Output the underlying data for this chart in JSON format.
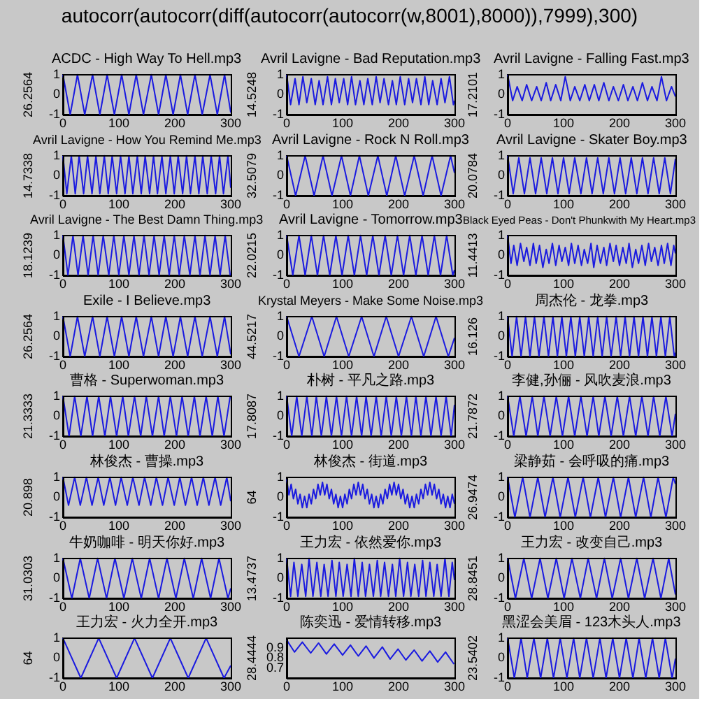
{
  "chart_data": [
    {
      "type": "line",
      "title": "ACDC - High Way To Hell.mp3",
      "ylabel": "26.2564",
      "annotations": [
        "autocorr(autocorr(diff(autocorr(autocorr(w,8001),8000)),7999),300)"
      ],
      "color": "#1a1ae0",
      "xlim": [
        0,
        300
      ],
      "ylim": [
        -1,
        1
      ],
      "xticks": [
        0,
        100,
        200,
        300
      ],
      "yticks": [
        -1,
        0,
        1
      ],
      "x": [
        0,
        13,
        26,
        39,
        53,
        66,
        79,
        92,
        105,
        118,
        131,
        144,
        158,
        171,
        184,
        197,
        210,
        223,
        236,
        249,
        263,
        276,
        289,
        300
      ],
      "values": [
        1,
        -1,
        1,
        -1,
        1,
        -1,
        1,
        -1,
        1,
        -1,
        1,
        -1,
        1,
        -1,
        1,
        -1,
        1,
        -1,
        1,
        -1,
        1,
        -1,
        1,
        -0.89
      ]
    },
    {
      "type": "line",
      "title": "Avril Lavigne - Bad Reputation.mp3",
      "ylabel": "14.5248",
      "color": "#1a1ae0",
      "xlim": [
        0,
        300
      ],
      "ylim": [
        -1,
        1
      ],
      "xticks": [
        0,
        100,
        200,
        300
      ],
      "yticks": [
        -1,
        0,
        1
      ],
      "x": [
        0,
        7,
        15,
        22,
        29,
        36,
        44,
        51,
        58,
        65,
        73,
        80,
        87,
        94,
        102,
        109,
        116,
        123,
        131,
        138,
        145,
        153,
        160,
        167,
        174,
        182,
        189,
        196,
        203,
        211,
        218,
        225,
        232,
        240,
        247,
        254,
        261,
        269,
        276,
        283,
        291,
        298,
        300
      ],
      "values": [
        1,
        -0.5,
        0.8,
        -0.5,
        0.9,
        -0.4,
        0.8,
        -0.5,
        0.7,
        -0.5,
        0.9,
        -0.5,
        0.8,
        -0.4,
        0.8,
        -0.5,
        0.9,
        -0.5,
        0.7,
        -0.5,
        0.8,
        -0.5,
        0.9,
        -0.4,
        0.8,
        -0.5,
        0.7,
        -0.5,
        0.9,
        -0.5,
        0.8,
        -0.4,
        0.8,
        -0.5,
        0.9,
        -0.5,
        0.7,
        -0.5,
        0.8,
        -0.4,
        0.9,
        -0.5,
        -0.3
      ]
    },
    {
      "type": "line",
      "title": "Avril Lavigne - Falling Fast.mp3",
      "ylabel": "17.2101",
      "color": "#1a1ae0",
      "xlim": [
        0,
        300
      ],
      "ylim": [
        -1,
        1
      ],
      "xticks": [
        0,
        100,
        200,
        300
      ],
      "yticks": [
        -1,
        0,
        1
      ],
      "x": [
        0,
        9,
        17,
        26,
        34,
        43,
        52,
        60,
        69,
        77,
        86,
        95,
        103,
        112,
        120,
        129,
        138,
        146,
        155,
        163,
        172,
        181,
        189,
        198,
        207,
        215,
        224,
        232,
        241,
        250,
        258,
        267,
        275,
        284,
        293,
        300
      ],
      "values": [
        1,
        -0.3,
        0.4,
        -0.3,
        0.5,
        -0.3,
        0.4,
        -0.3,
        0.6,
        -0.3,
        0.5,
        -0.3,
        0.9,
        -0.3,
        0.4,
        -0.3,
        0.5,
        -0.3,
        0.5,
        -0.3,
        0.6,
        -0.3,
        0.4,
        -0.3,
        0.5,
        -0.3,
        0.4,
        -0.3,
        0.6,
        -0.3,
        0.4,
        -0.3,
        0.9,
        -0.3,
        0.4,
        -0.1
      ]
    },
    {
      "type": "line",
      "title": "Avril Lavigne - How You Remind Me.mp3",
      "ylabel": "14.7338",
      "color": "#1a1ae0",
      "xlim": [
        0,
        300
      ],
      "ylim": [
        -1,
        1
      ],
      "xticks": [
        0,
        100,
        200,
        300
      ],
      "yticks": [
        -1,
        0,
        1
      ],
      "x": [
        0,
        7,
        15,
        22,
        29,
        37,
        44,
        52,
        59,
        66,
        74,
        81,
        88,
        96,
        103,
        111,
        118,
        125,
        133,
        140,
        147,
        155,
        162,
        169,
        177,
        184,
        192,
        199,
        206,
        214,
        221,
        228,
        236,
        243,
        250,
        258,
        265,
        273,
        280,
        287,
        295,
        300
      ],
      "values": [
        1,
        -0.9,
        1,
        -0.9,
        1,
        -0.9,
        1,
        -0.9,
        1,
        -0.9,
        1,
        -0.9,
        1,
        -0.9,
        1,
        -0.9,
        1,
        -0.9,
        1,
        -0.9,
        1,
        -0.9,
        1,
        -0.9,
        1,
        -0.9,
        1,
        -0.9,
        1,
        -0.9,
        1,
        -0.9,
        1,
        -0.9,
        1,
        -0.9,
        1,
        -0.9,
        1,
        -0.9,
        1,
        -0.6
      ]
    },
    {
      "type": "line",
      "title": "Avril Lavigne - Rock N Roll.mp3",
      "ylabel": "32.5079",
      "color": "#1a1ae0",
      "xlim": [
        0,
        300
      ],
      "ylim": [
        -1,
        1
      ],
      "xticks": [
        0,
        100,
        200,
        300
      ],
      "yticks": [
        -1,
        0,
        1
      ],
      "x": [
        0,
        16,
        33,
        49,
        65,
        81,
        98,
        114,
        130,
        146,
        163,
        179,
        195,
        211,
        228,
        244,
        260,
        276,
        293,
        300
      ],
      "values": [
        1,
        -1,
        1,
        -1,
        1,
        -1,
        1,
        -1,
        1,
        -1,
        1,
        -1,
        1,
        -1,
        1,
        -1,
        1,
        -1,
        1,
        0.14
      ]
    },
    {
      "type": "line",
      "title": "Avril Lavigne - Skater Boy.mp3",
      "ylabel": "20.0784",
      "color": "#1a1ae0",
      "xlim": [
        0,
        300
      ],
      "ylim": [
        -1,
        1
      ],
      "xticks": [
        0,
        100,
        200,
        300
      ],
      "yticks": [
        -1,
        0,
        1
      ],
      "x": [
        0,
        10,
        20,
        30,
        40,
        50,
        60,
        70,
        80,
        90,
        100,
        110,
        120,
        131,
        141,
        151,
        161,
        171,
        181,
        191,
        201,
        211,
        221,
        231,
        241,
        251,
        261,
        271,
        281,
        291,
        300
      ],
      "values": [
        1,
        -0.9,
        0.9,
        -0.9,
        0.9,
        -0.9,
        0.9,
        -0.9,
        0.9,
        -0.9,
        0.9,
        -0.9,
        0.9,
        -0.9,
        0.9,
        -0.9,
        0.9,
        -0.9,
        0.9,
        -0.9,
        0.9,
        -0.9,
        0.9,
        -0.9,
        0.9,
        -0.9,
        0.9,
        -0.9,
        0.9,
        -0.9,
        0.85
      ]
    },
    {
      "type": "line",
      "title": "Avril Lavigne - The Best Damn Thing.mp3",
      "ylabel": "18.1239",
      "color": "#1a1ae0",
      "xlim": [
        0,
        300
      ],
      "ylim": [
        -1,
        1
      ],
      "xticks": [
        0,
        100,
        200,
        300
      ],
      "yticks": [
        -1,
        0,
        1
      ],
      "x": [
        0,
        9,
        18,
        27,
        36,
        45,
        54,
        63,
        72,
        82,
        91,
        100,
        109,
        118,
        127,
        136,
        145,
        154,
        163,
        172,
        181,
        190,
        199,
        208,
        217,
        227,
        236,
        245,
        254,
        263,
        272,
        281,
        290,
        299
      ],
      "values": [
        1,
        -1,
        1,
        -1,
        1,
        -1,
        1,
        -1,
        1,
        -1,
        1,
        -1,
        1,
        -1,
        1,
        -1,
        1,
        -1,
        1,
        -1,
        1,
        -1,
        1,
        -1,
        1,
        -1,
        1,
        -1,
        1,
        -1,
        1,
        -1,
        1,
        -1
      ]
    },
    {
      "type": "line",
      "title": "Avril Lavigne - Tomorrow.mp3",
      "ylabel": "22.0215",
      "color": "#1a1ae0",
      "xlim": [
        0,
        300
      ],
      "ylim": [
        -1,
        1
      ],
      "xticks": [
        0,
        100,
        200,
        300
      ],
      "yticks": [
        -1,
        0,
        1
      ],
      "x": [
        0,
        11,
        22,
        33,
        44,
        55,
        66,
        77,
        88,
        99,
        110,
        121,
        132,
        143,
        154,
        165,
        176,
        187,
        198,
        209,
        220,
        231,
        242,
        253,
        264,
        275,
        286,
        297,
        300
      ],
      "values": [
        1,
        -1,
        1,
        -1,
        1,
        -1,
        1,
        -1,
        1,
        -1,
        1,
        -1,
        1,
        -1,
        1,
        -1,
        1,
        -1,
        1,
        -1,
        1,
        -1,
        1,
        -1,
        1,
        -1,
        1,
        -1,
        -0.72
      ]
    },
    {
      "type": "line",
      "title": "Black Eyed Peas - Don't Phunkwith My Heart.mp3",
      "ylabel": "11.4413",
      "color": "#1a1ae0",
      "xlim": [
        0,
        300
      ],
      "ylim": [
        -1,
        1
      ],
      "xticks": [
        0,
        100,
        200,
        300
      ],
      "yticks": [
        -1,
        0,
        1
      ],
      "x": [
        0,
        6,
        11,
        17,
        23,
        29,
        34,
        40,
        46,
        51,
        57,
        63,
        69,
        74,
        80,
        86,
        92,
        97,
        103,
        109,
        114,
        120,
        126,
        132,
        137,
        143,
        149,
        154,
        160,
        166,
        172,
        177,
        183,
        189,
        194,
        200,
        206,
        212,
        217,
        223,
        229,
        234,
        240,
        246,
        252,
        257,
        263,
        269,
        275,
        280,
        286,
        292,
        297,
        300
      ],
      "values": [
        1,
        -0.4,
        0.5,
        -0.5,
        0.6,
        -0.3,
        0.4,
        -0.5,
        0.6,
        -0.4,
        0.5,
        -0.6,
        0.3,
        -0.4,
        0.6,
        -0.5,
        0.5,
        -0.3,
        0.4,
        -0.5,
        0.6,
        -0.4,
        0.5,
        -0.5,
        0.3,
        -0.4,
        0.6,
        -0.6,
        0.5,
        -0.4,
        0.4,
        -0.5,
        0.6,
        -0.3,
        0.5,
        -0.5,
        0.4,
        -0.4,
        0.6,
        -0.6,
        0.3,
        -0.4,
        0.5,
        -0.5,
        0.6,
        -0.3,
        0.4,
        -0.5,
        0.5,
        -0.4,
        0.6,
        -0.5,
        0.5,
        0.1
      ]
    },
    {
      "type": "line",
      "title": "Exile - I Believe.mp3",
      "ylabel": "26.2564",
      "color": "#1a1ae0",
      "xlim": [
        0,
        300
      ],
      "ylim": [
        -1,
        1
      ],
      "xticks": [
        0,
        100,
        200,
        300
      ],
      "yticks": [
        -1,
        0,
        1
      ],
      "x": [
        0,
        13,
        26,
        39,
        53,
        66,
        79,
        92,
        105,
        118,
        131,
        144,
        158,
        171,
        184,
        197,
        210,
        223,
        236,
        249,
        263,
        276,
        289,
        300
      ],
      "values": [
        1,
        -1,
        1,
        -1,
        1,
        -1,
        1,
        -1,
        1,
        -1,
        1,
        -1,
        1,
        -1,
        1,
        -1,
        1,
        -1,
        1,
        -1,
        1,
        -1,
        1,
        -0.89
      ]
    },
    {
      "type": "line",
      "title": "Krystal Meyers - Make Some Noise.mp3",
      "ylabel": "44.5217",
      "color": "#1a1ae0",
      "xlim": [
        0,
        300
      ],
      "ylim": [
        -1,
        1
      ],
      "xticks": [
        0,
        100,
        200,
        300
      ],
      "yticks": [
        -1,
        0,
        1
      ],
      "x": [
        0,
        22,
        45,
        67,
        89,
        111,
        134,
        156,
        178,
        200,
        223,
        245,
        267,
        289,
        300
      ],
      "values": [
        1,
        -1,
        1,
        -1,
        1,
        -1,
        1,
        -1,
        1,
        -1,
        1,
        -1,
        1,
        -1,
        -0.07
      ]
    },
    {
      "type": "line",
      "title": "周杰伦 - 龙拳.mp3",
      "ylabel": "16.126",
      "color": "#1a1ae0",
      "xlim": [
        0,
        300
      ],
      "ylim": [
        -1,
        1
      ],
      "xticks": [
        0,
        100,
        200,
        300
      ],
      "yticks": [
        -1,
        0,
        1
      ],
      "x": [
        0,
        8,
        16,
        24,
        32,
        40,
        48,
        56,
        65,
        73,
        81,
        89,
        97,
        105,
        113,
        121,
        129,
        137,
        145,
        153,
        161,
        169,
        177,
        185,
        194,
        202,
        210,
        218,
        226,
        234,
        242,
        250,
        258,
        266,
        274,
        282,
        290,
        298,
        300
      ],
      "values": [
        1,
        -1,
        1,
        -1,
        1,
        -1,
        1,
        -1,
        1,
        -1,
        1,
        -1,
        1,
        -1,
        1,
        -1,
        1,
        -1,
        1,
        -1,
        1,
        -1,
        1,
        -1,
        1,
        -1,
        1,
        -1,
        1,
        -1,
        1,
        -1,
        1,
        -1,
        1,
        -1,
        1,
        -1,
        -0.81
      ]
    },
    {
      "type": "line",
      "title": "曹格 - Superwoman.mp3",
      "ylabel": "21.3333",
      "color": "#1a1ae0",
      "xlim": [
        0,
        300
      ],
      "ylim": [
        -1,
        1
      ],
      "xticks": [
        0,
        100,
        200,
        300
      ],
      "yticks": [
        -1,
        0,
        1
      ],
      "x": [
        0,
        11,
        21,
        32,
        43,
        53,
        64,
        75,
        85,
        96,
        107,
        117,
        128,
        139,
        149,
        160,
        171,
        181,
        192,
        203,
        213,
        224,
        235,
        245,
        256,
        267,
        277,
        288,
        299
      ],
      "values": [
        1,
        -1,
        1,
        -1,
        1,
        -1,
        1,
        -1,
        1,
        -1,
        1,
        -1,
        1,
        -1,
        1,
        -1,
        1,
        -1,
        1,
        -1,
        1,
        -1,
        1,
        -1,
        1,
        -1,
        1,
        -1,
        1
      ]
    },
    {
      "type": "line",
      "title": "朴树 - 平凡之路.mp3",
      "ylabel": "17.8087",
      "color": "#1a1ae0",
      "xlim": [
        0,
        300
      ],
      "ylim": [
        -1,
        1
      ],
      "xticks": [
        0,
        100,
        200,
        300
      ],
      "yticks": [
        -1,
        0,
        1
      ],
      "x": [
        0,
        9,
        18,
        27,
        36,
        45,
        53,
        62,
        71,
        80,
        89,
        98,
        107,
        116,
        125,
        134,
        142,
        151,
        160,
        169,
        178,
        187,
        196,
        205,
        214,
        223,
        231,
        240,
        249,
        258,
        267,
        276,
        285,
        294,
        300
      ],
      "values": [
        1,
        -1,
        1,
        -1,
        1,
        -1,
        1,
        -1,
        1,
        -1,
        1,
        -1,
        1,
        -1,
        1,
        -1,
        1,
        -1,
        1,
        -1,
        1,
        -1,
        1,
        -1,
        1,
        -1,
        1,
        -1,
        1,
        -1,
        1,
        -1,
        1,
        -1,
        0.57
      ]
    },
    {
      "type": "line",
      "title": "李健,孙俪 - 风吹麦浪.mp3",
      "ylabel": "21.7872",
      "color": "#1a1ae0",
      "xlim": [
        0,
        300
      ],
      "ylim": [
        -1,
        1
      ],
      "xticks": [
        0,
        100,
        200,
        300
      ],
      "yticks": [
        -1,
        0,
        1
      ],
      "x": [
        0,
        11,
        22,
        33,
        44,
        54,
        65,
        76,
        87,
        98,
        109,
        120,
        131,
        142,
        153,
        163,
        174,
        185,
        196,
        207,
        218,
        229,
        240,
        251,
        261,
        272,
        283,
        294,
        300
      ],
      "values": [
        1,
        -1,
        1,
        -1,
        1,
        -1,
        1,
        -1,
        1,
        -1,
        1,
        -1,
        1,
        -1,
        1,
        -1,
        1,
        -1,
        1,
        -1,
        1,
        -1,
        1,
        -1,
        1,
        -1,
        1,
        -1,
        0.12
      ]
    },
    {
      "type": "line",
      "title": "林俊杰 - 曹操.mp3",
      "ylabel": "20.898",
      "color": "#1a1ae0",
      "xlim": [
        0,
        300
      ],
      "ylim": [
        -1,
        1
      ],
      "xticks": [
        0,
        100,
        200,
        300
      ],
      "yticks": [
        -1,
        0,
        1
      ],
      "x": [
        0,
        10,
        21,
        31,
        42,
        52,
        63,
        73,
        84,
        94,
        104,
        115,
        125,
        136,
        146,
        157,
        167,
        178,
        188,
        199,
        209,
        219,
        230,
        240,
        251,
        261,
        272,
        282,
        293,
        300
      ],
      "values": [
        1,
        -0.4,
        1,
        -0.4,
        1,
        -0.4,
        1,
        -0.4,
        1,
        -0.4,
        1,
        -0.4,
        1,
        -0.4,
        1,
        -0.4,
        1,
        -0.4,
        1,
        -0.4,
        1,
        -0.4,
        1,
        -0.4,
        1,
        -0.4,
        1,
        -0.4,
        1,
        -0.2
      ]
    },
    {
      "type": "line",
      "title": "林俊杰 - 街道.mp3",
      "ylabel": "64",
      "color": "#1a1ae0",
      "xlim": [
        0,
        300
      ],
      "ylim": [
        -1,
        1
      ],
      "xticks": [
        0,
        100,
        200,
        300
      ],
      "yticks": [
        -1,
        0,
        1
      ],
      "x": [
        0,
        4,
        8,
        12,
        16,
        20,
        24,
        28,
        32,
        36,
        40,
        44,
        48,
        52,
        56,
        60,
        64,
        68,
        72,
        76,
        80,
        84,
        88,
        92,
        96,
        100,
        104,
        108,
        112,
        116,
        120,
        124,
        128,
        132,
        136,
        140,
        144,
        148,
        152,
        156,
        160,
        164,
        168,
        172,
        176,
        180,
        184,
        188,
        192,
        196,
        200,
        204,
        208,
        212,
        216,
        220,
        224,
        228,
        232,
        236,
        240,
        244,
        248,
        252,
        256,
        260,
        264,
        268,
        272,
        276,
        280,
        284,
        288,
        292,
        296,
        300
      ],
      "values": [
        0.9,
        0.12,
        0.65,
        -0.07,
        0.4,
        -0.33,
        0.15,
        -0.52,
        0.05,
        -0.52,
        0.15,
        -0.33,
        0.4,
        -0.07,
        0.65,
        0.12,
        0.75,
        0.12,
        0.65,
        -0.07,
        0.4,
        -0.33,
        0.15,
        -0.52,
        0.05,
        -0.52,
        0.15,
        -0.33,
        0.4,
        -0.07,
        0.65,
        0.12,
        0.75,
        0.12,
        0.65,
        -0.07,
        0.4,
        -0.33,
        0.15,
        -0.52,
        0.05,
        -0.52,
        0.15,
        -0.33,
        0.4,
        -0.07,
        0.65,
        0.12,
        0.75,
        0.12,
        0.65,
        -0.07,
        0.4,
        -0.33,
        0.15,
        -0.52,
        0.05,
        -0.52,
        0.15,
        -0.33,
        0.4,
        -0.07,
        0.65,
        0.12,
        0.75,
        0.12,
        0.65,
        -0.07,
        0.4,
        -0.33,
        0.15,
        -0.52,
        0.05,
        -0.52,
        0.15,
        -0.33
      ]
    },
    {
      "type": "line",
      "title": "梁静茹 - 会呼吸的痛.mp3",
      "ylabel": "26.9474",
      "color": "#1a1ae0",
      "xlim": [
        0,
        300
      ],
      "ylim": [
        -1,
        1
      ],
      "xticks": [
        0,
        100,
        200,
        300
      ],
      "yticks": [
        -1,
        0,
        1
      ],
      "x": [
        0,
        13,
        27,
        40,
        54,
        67,
        81,
        94,
        108,
        121,
        135,
        148,
        162,
        175,
        189,
        202,
        216,
        229,
        243,
        256,
        269,
        283,
        296,
        300
      ],
      "values": [
        1,
        -1,
        1,
        -1,
        1,
        -1,
        1,
        -1,
        1,
        -1,
        1,
        -1,
        1,
        -1,
        1,
        -1,
        1,
        -1,
        1,
        -1,
        1,
        -1,
        1,
        0.67
      ]
    },
    {
      "type": "line",
      "title": "牛奶咖啡 - 明天你好.mp3",
      "ylabel": "31.0303",
      "color": "#1a1ae0",
      "xlim": [
        0,
        300
      ],
      "ylim": [
        -1,
        1
      ],
      "xticks": [
        0,
        100,
        200,
        300
      ],
      "yticks": [
        -1,
        0,
        1
      ],
      "x": [
        0,
        16,
        31,
        47,
        62,
        78,
        93,
        109,
        124,
        140,
        155,
        171,
        186,
        202,
        217,
        233,
        248,
        264,
        279,
        295,
        300
      ],
      "values": [
        1,
        -1,
        1,
        -1,
        1,
        -1,
        1,
        -1,
        1,
        -1,
        1,
        -1,
        1,
        -1,
        1,
        -1,
        1,
        -1,
        1,
        -1,
        -0.5
      ]
    },
    {
      "type": "line",
      "title": "王力宏 - 依然爱你.mp3",
      "ylabel": "13.4737",
      "color": "#1a1ae0",
      "xlim": [
        0,
        300
      ],
      "ylim": [
        -1,
        1
      ],
      "xticks": [
        0,
        100,
        200,
        300
      ],
      "yticks": [
        -1,
        0,
        1
      ],
      "x": [
        0,
        7,
        13,
        20,
        27,
        34,
        40,
        47,
        54,
        61,
        67,
        74,
        81,
        88,
        94,
        101,
        108,
        115,
        121,
        128,
        135,
        141,
        148,
        155,
        162,
        168,
        175,
        182,
        189,
        195,
        202,
        209,
        216,
        222,
        229,
        236,
        243,
        249,
        256,
        263,
        269,
        276,
        283,
        290,
        296,
        300
      ],
      "values": [
        1,
        -0.9,
        0.8,
        -0.9,
        0.7,
        -0.9,
        1,
        -0.9,
        0.8,
        -0.9,
        0.7,
        -0.9,
        0.9,
        -0.9,
        0.8,
        -0.9,
        0.7,
        -0.9,
        1,
        -0.9,
        0.8,
        -0.9,
        0.7,
        -0.9,
        0.9,
        -0.9,
        0.8,
        -0.9,
        0.7,
        -0.9,
        1,
        -0.9,
        0.8,
        -0.9,
        0.7,
        -0.9,
        0.9,
        -0.9,
        0.8,
        -0.9,
        0.7,
        -0.9,
        1,
        -0.9,
        0.8,
        -0.09
      ]
    },
    {
      "type": "line",
      "title": "王力宏 - 改变自己.mp3",
      "ylabel": "28.8451",
      "color": "#1a1ae0",
      "xlim": [
        0,
        300
      ],
      "ylim": [
        -1,
        1
      ],
      "xticks": [
        0,
        100,
        200,
        300
      ],
      "yticks": [
        -1,
        0,
        1
      ],
      "x": [
        0,
        14,
        29,
        43,
        58,
        72,
        87,
        101,
        115,
        130,
        144,
        159,
        173,
        187,
        202,
        216,
        231,
        245,
        260,
        274,
        288,
        300
      ],
      "values": [
        1,
        -1,
        1,
        -1,
        1,
        -1,
        1,
        -1,
        1,
        -1,
        1,
        -1,
        1,
        -1,
        1,
        -1,
        1,
        -1,
        1,
        -1,
        1,
        -0.81
      ]
    },
    {
      "type": "line",
      "title": "王力宏 - 火力全开.mp3",
      "ylabel": "64",
      "color": "#1a1ae0",
      "xlim": [
        0,
        300
      ],
      "ylim": [
        -1,
        1
      ],
      "xticks": [
        0,
        100,
        200,
        300
      ],
      "yticks": [
        -1,
        0,
        1
      ],
      "x": [
        0,
        32,
        64,
        96,
        128,
        160,
        192,
        224,
        256,
        288,
        300
      ],
      "values": [
        1,
        -1,
        1,
        -1,
        1,
        -1,
        1,
        -1,
        1,
        -1,
        -0.38
      ]
    },
    {
      "type": "line",
      "title": "陈奕迅 - 爱情转移.mp3",
      "ylabel": "28.4444",
      "color": "#1a1ae0",
      "xlim": [
        0,
        300
      ],
      "ylim": [
        0.6,
        1
      ],
      "xticks": [
        0,
        100,
        200,
        300
      ],
      "yticks": [
        0.7,
        0.8,
        0.9
      ],
      "x": [
        0,
        14,
        28,
        43,
        57,
        71,
        85,
        100,
        114,
        128,
        142,
        156,
        171,
        185,
        199,
        213,
        228,
        242,
        256,
        270,
        284,
        299
      ],
      "values": [
        0.98,
        0.86,
        0.96,
        0.85,
        0.95,
        0.84,
        0.94,
        0.83,
        0.93,
        0.82,
        0.92,
        0.8,
        0.91,
        0.79,
        0.89,
        0.78,
        0.88,
        0.77,
        0.87,
        0.76,
        0.86,
        0.74
      ]
    },
    {
      "type": "line",
      "title": "黑涩会美眉 - 123木头人.mp3",
      "ylabel": "23.5402",
      "color": "#1a1ae0",
      "xlim": [
        0,
        300
      ],
      "ylim": [
        -1,
        1
      ],
      "xticks": [
        0,
        100,
        200,
        300
      ],
      "yticks": [
        -1,
        0,
        1
      ],
      "x": [
        0,
        12,
        24,
        35,
        47,
        59,
        71,
        82,
        94,
        106,
        118,
        129,
        141,
        153,
        165,
        176,
        188,
        200,
        212,
        224,
        235,
        247,
        259,
        271,
        282,
        294,
        300
      ],
      "values": [
        1,
        -1,
        1,
        -1,
        1,
        -1,
        1,
        -1,
        1,
        -1,
        1,
        -1,
        1,
        -1,
        1,
        -1,
        1,
        -1,
        1,
        -1,
        1,
        -1,
        1,
        -1,
        1,
        -1,
        -0.03
      ]
    }
  ]
}
